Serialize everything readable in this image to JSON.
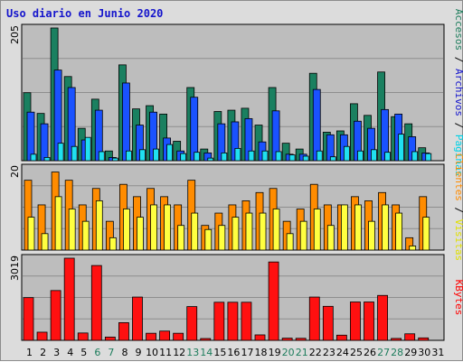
{
  "chart_data": {
    "type": "bar",
    "title": "Uso diario en Junio 2020",
    "days": [
      "1",
      "2",
      "3",
      "4",
      "5",
      "6",
      "7",
      "8",
      "9",
      "10",
      "11",
      "12",
      "13",
      "14",
      "15",
      "16",
      "17",
      "18",
      "19",
      "20",
      "21",
      "22",
      "23",
      "24",
      "25",
      "26",
      "27",
      "28",
      "29",
      "30",
      "31"
    ],
    "weekend_days": [
      6,
      7,
      13,
      14,
      20,
      21,
      27,
      28
    ],
    "panels": [
      {
        "max_label": "205",
        "ymax": 205,
        "legend": [
          {
            "text": "Accesos",
            "color": "#1d7d5c"
          },
          {
            "text": " / ",
            "color": "#000000"
          },
          {
            "text": "Archivos",
            "color": "#1414cc"
          },
          {
            "text": " / ",
            "color": "#000000"
          },
          {
            "text": "Páginas",
            "color": "#00d2e6"
          }
        ],
        "series": [
          {
            "name": "Accesos",
            "color": "#1a8060",
            "values": [
              105,
              73,
              205,
              130,
              50,
              95,
              15,
              148,
              80,
              85,
              72,
              30,
              113,
              18,
              76,
              78,
              81,
              55,
              113,
              27,
              18,
              135,
              44,
              46,
              88,
              70,
              137,
              68,
              57,
              20,
              0
            ]
          },
          {
            "name": "Archivos",
            "color": "#1a52ff",
            "values": [
              75,
              57,
              140,
              113,
              32,
              78,
              5,
              120,
              55,
              75,
              35,
              15,
              98,
              12,
              57,
              60,
              65,
              29,
              77,
              10,
              10,
              110,
              40,
              40,
              61,
              50,
              79,
              72,
              37,
              12,
              0
            ]
          },
          {
            "name": "Páginas",
            "color": "#20e0f0",
            "values": [
              10,
              5,
              27,
              22,
              36,
              14,
              4,
              15,
              17,
              18,
              25,
              11,
              13,
              4,
              12,
              19,
              15,
              15,
              14,
              9,
              7,
              15,
              6,
              22,
              15,
              17,
              13,
              41,
              14,
              11,
              0
            ]
          }
        ]
      },
      {
        "max_label": "20",
        "ymax": 20,
        "legend": [
          {
            "text": "Clientes",
            "color": "#ff8c00"
          },
          {
            "text": " / ",
            "color": "#000000"
          },
          {
            "text": "Visitas",
            "color": "#e0e000"
          }
        ],
        "series": [
          {
            "name": "Clientes",
            "color": "#ff8c00",
            "values": [
              17,
              11,
              19,
              17,
              11,
              15,
              7,
              16,
              13,
              15,
              13,
              11,
              17,
              6,
              9,
              11,
              12,
              14,
              15,
              7,
              10,
              16,
              11,
              11,
              13,
              12,
              14,
              11,
              3,
              13,
              0
            ]
          },
          {
            "name": "Visitas",
            "color": "#ffff40",
            "values": [
              8,
              4,
              13,
              10,
              7,
              12,
              3,
              10,
              8,
              11,
              11,
              6,
              9,
              5,
              6,
              8,
              9,
              9,
              10,
              4,
              7,
              10,
              6,
              11,
              11,
              7,
              11,
              9,
              1,
              8,
              0
            ]
          }
        ]
      },
      {
        "max_label": "3019",
        "ymax": 3019,
        "legend": [
          {
            "text": "KBytes",
            "color": "#ff0000"
          }
        ],
        "series": [
          {
            "name": "KBytes",
            "color": "#ff1010",
            "values": [
              1570,
              300,
              1830,
              3019,
              270,
              2750,
              120,
              650,
              1590,
              260,
              340,
              260,
              1240,
              55,
              1400,
              1400,
              1400,
              200,
              2880,
              80,
              75,
              1590,
              1250,
              190,
              1410,
              1410,
              1650,
              70,
              240,
              90,
              0
            ]
          }
        ]
      }
    ]
  }
}
